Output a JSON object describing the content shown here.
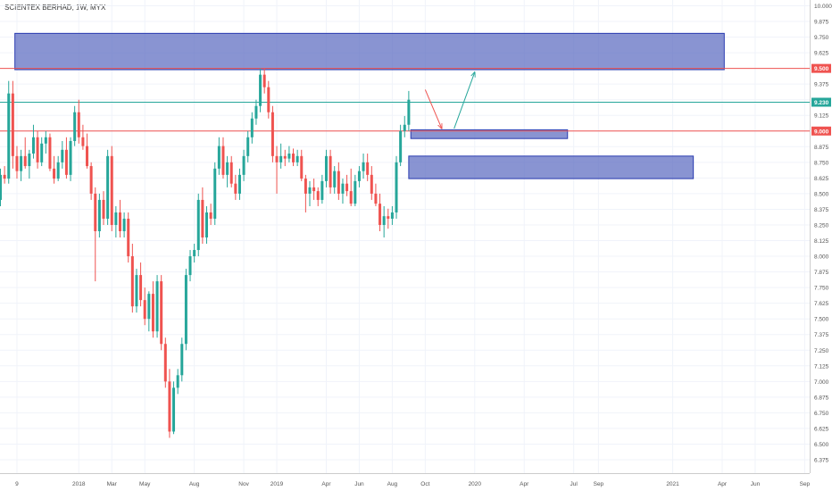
{
  "header": {
    "title": "SCIENTEX BERHAD, 1W, MYX"
  },
  "colors": {
    "up": "#26a69a",
    "down": "#ef5350",
    "zone_fill": "#5c6bc0",
    "zone_stroke": "#2a3bb0",
    "resistance_line": "#ef5350",
    "current_line": "#26a69a",
    "grid": "#f0f3fa",
    "axis_text": "#555555"
  },
  "chart_data": {
    "type": "candlestick",
    "title": "SCIENTEX BERHAD, 1W, MYX",
    "ylim": [
      6.3,
      10.05
    ],
    "y_ticks": [
      "10.000",
      "9.875",
      "9.750",
      "9.625",
      "9.500",
      "9.375",
      "9.250",
      "9.125",
      "9.000",
      "8.875",
      "8.750",
      "8.625",
      "8.500",
      "8.375",
      "8.250",
      "8.125",
      "8.000",
      "7.875",
      "7.750",
      "7.625",
      "7.500",
      "7.375",
      "7.250",
      "7.125",
      "7.000",
      "6.875",
      "6.750",
      "6.625",
      "6.500",
      "6.375"
    ],
    "x_ticks": [
      "9",
      "2018",
      "Mar",
      "May",
      "Aug",
      "Nov",
      "2019",
      "Apr",
      "Jun",
      "Aug",
      "Oct",
      "2020",
      "Apr",
      "Jul",
      "Sep",
      "2021",
      "Apr",
      "Jun",
      "Sep"
    ],
    "x_tick_weeks": [
      4,
      19,
      27,
      35,
      47,
      59,
      67,
      79,
      87,
      95,
      103,
      115,
      127,
      139,
      145,
      163,
      175,
      183,
      195
    ],
    "price_labels": [
      {
        "value": 9.5,
        "text": "9.500",
        "color": "#ef5350"
      },
      {
        "value": 9.23,
        "text": "9.230",
        "color": "#26a69a"
      },
      {
        "value": 9.0,
        "text": "9.000",
        "color": "#ef5350"
      }
    ],
    "horizontal_lines": [
      {
        "value": 9.5,
        "color": "#ef5350",
        "kind": "resistance"
      },
      {
        "value": 9.23,
        "color": "#26a69a",
        "kind": "last-price"
      },
      {
        "value": 9.0,
        "color": "#ef5350",
        "kind": "support"
      }
    ],
    "zones": [
      {
        "week_start": 3.5,
        "week_end": 175.5,
        "high": 9.78,
        "low": 9.49
      },
      {
        "week_start": 99.5,
        "week_end": 137.5,
        "high": 9.01,
        "low": 8.94
      },
      {
        "week_start": 99,
        "week_end": 168,
        "high": 8.8,
        "low": 8.62
      }
    ],
    "arrows": [
      {
        "color": "#ef5350",
        "from": [
          103,
          9.33
        ],
        "to": [
          107,
          9.02
        ]
      },
      {
        "color": "#26a69a",
        "from": [
          110,
          9.02
        ],
        "to": [
          115,
          9.47
        ]
      }
    ],
    "candles": [
      {
        "o": 8.45,
        "h": 8.7,
        "l": 8.4,
        "c": 8.65
      },
      {
        "o": 8.65,
        "h": 8.72,
        "l": 8.58,
        "c": 8.62
      },
      {
        "o": 8.62,
        "h": 9.4,
        "l": 8.58,
        "c": 9.3
      },
      {
        "o": 9.3,
        "h": 9.4,
        "l": 8.7,
        "c": 8.8
      },
      {
        "o": 8.8,
        "h": 8.88,
        "l": 8.62,
        "c": 8.68
      },
      {
        "o": 8.68,
        "h": 8.85,
        "l": 8.6,
        "c": 8.8
      },
      {
        "o": 8.8,
        "h": 8.95,
        "l": 8.7,
        "c": 8.72
      },
      {
        "o": 8.72,
        "h": 8.85,
        "l": 8.62,
        "c": 8.82
      },
      {
        "o": 8.82,
        "h": 9.05,
        "l": 8.78,
        "c": 8.95
      },
      {
        "o": 8.95,
        "h": 9.0,
        "l": 8.7,
        "c": 8.75
      },
      {
        "o": 8.75,
        "h": 8.95,
        "l": 8.72,
        "c": 8.9
      },
      {
        "o": 8.9,
        "h": 9.0,
        "l": 8.82,
        "c": 8.95
      },
      {
        "o": 8.95,
        "h": 8.98,
        "l": 8.68,
        "c": 8.7
      },
      {
        "o": 8.7,
        "h": 8.8,
        "l": 8.58,
        "c": 8.62
      },
      {
        "o": 8.62,
        "h": 8.8,
        "l": 8.6,
        "c": 8.75
      },
      {
        "o": 8.75,
        "h": 8.92,
        "l": 8.7,
        "c": 8.85
      },
      {
        "o": 8.85,
        "h": 8.95,
        "l": 8.62,
        "c": 8.65
      },
      {
        "o": 8.65,
        "h": 8.95,
        "l": 8.6,
        "c": 8.92
      },
      {
        "o": 8.92,
        "h": 9.2,
        "l": 8.88,
        "c": 9.15
      },
      {
        "o": 9.15,
        "h": 9.25,
        "l": 8.9,
        "c": 8.95
      },
      {
        "o": 8.95,
        "h": 9.05,
        "l": 8.85,
        "c": 8.88
      },
      {
        "o": 8.88,
        "h": 8.98,
        "l": 8.7,
        "c": 8.72
      },
      {
        "o": 8.72,
        "h": 8.75,
        "l": 8.45,
        "c": 8.5
      },
      {
        "o": 8.5,
        "h": 8.55,
        "l": 7.8,
        "c": 8.2
      },
      {
        "o": 8.2,
        "h": 8.5,
        "l": 8.15,
        "c": 8.45
      },
      {
        "o": 8.45,
        "h": 8.52,
        "l": 8.25,
        "c": 8.3
      },
      {
        "o": 8.3,
        "h": 8.85,
        "l": 8.25,
        "c": 8.8
      },
      {
        "o": 8.8,
        "h": 8.88,
        "l": 8.2,
        "c": 8.25
      },
      {
        "o": 8.25,
        "h": 8.4,
        "l": 8.15,
        "c": 8.35
      },
      {
        "o": 8.35,
        "h": 8.45,
        "l": 8.15,
        "c": 8.2
      },
      {
        "o": 8.2,
        "h": 8.35,
        "l": 8.15,
        "c": 8.3
      },
      {
        "o": 8.3,
        "h": 8.35,
        "l": 7.95,
        "c": 8.0
      },
      {
        "o": 8.0,
        "h": 8.1,
        "l": 7.55,
        "c": 7.6
      },
      {
        "o": 7.6,
        "h": 7.9,
        "l": 7.55,
        "c": 7.85
      },
      {
        "o": 7.85,
        "h": 7.95,
        "l": 7.6,
        "c": 7.65
      },
      {
        "o": 7.65,
        "h": 7.75,
        "l": 7.45,
        "c": 7.5
      },
      {
        "o": 7.5,
        "h": 7.72,
        "l": 7.4,
        "c": 7.7
      },
      {
        "o": 7.7,
        "h": 7.8,
        "l": 7.35,
        "c": 7.4
      },
      {
        "o": 7.4,
        "h": 7.85,
        "l": 7.35,
        "c": 7.8
      },
      {
        "o": 7.8,
        "h": 7.85,
        "l": 7.25,
        "c": 7.3
      },
      {
        "o": 7.3,
        "h": 7.35,
        "l": 6.95,
        "c": 7.0
      },
      {
        "o": 7.0,
        "h": 7.1,
        "l": 6.55,
        "c": 6.6
      },
      {
        "o": 6.6,
        "h": 7.0,
        "l": 6.58,
        "c": 6.95
      },
      {
        "o": 6.95,
        "h": 7.1,
        "l": 6.9,
        "c": 7.05
      },
      {
        "o": 7.05,
        "h": 7.35,
        "l": 7.0,
        "c": 7.3
      },
      {
        "o": 7.3,
        "h": 7.9,
        "l": 7.25,
        "c": 7.85
      },
      {
        "o": 7.85,
        "h": 8.05,
        "l": 7.8,
        "c": 8.0
      },
      {
        "o": 8.0,
        "h": 8.1,
        "l": 7.95,
        "c": 8.05
      },
      {
        "o": 8.05,
        "h": 8.5,
        "l": 8.0,
        "c": 8.45
      },
      {
        "o": 8.45,
        "h": 8.55,
        "l": 8.1,
        "c": 8.15
      },
      {
        "o": 8.15,
        "h": 8.4,
        "l": 8.1,
        "c": 8.35
      },
      {
        "o": 8.35,
        "h": 8.42,
        "l": 8.25,
        "c": 8.3
      },
      {
        "o": 8.3,
        "h": 8.75,
        "l": 8.25,
        "c": 8.7
      },
      {
        "o": 8.7,
        "h": 8.95,
        "l": 8.65,
        "c": 8.88
      },
      {
        "o": 8.88,
        "h": 8.95,
        "l": 8.62,
        "c": 8.65
      },
      {
        "o": 8.65,
        "h": 8.8,
        "l": 8.55,
        "c": 8.75
      },
      {
        "o": 8.75,
        "h": 8.8,
        "l": 8.55,
        "c": 8.58
      },
      {
        "o": 8.58,
        "h": 8.65,
        "l": 8.45,
        "c": 8.5
      },
      {
        "o": 8.5,
        "h": 8.7,
        "l": 8.45,
        "c": 8.65
      },
      {
        "o": 8.65,
        "h": 8.85,
        "l": 8.6,
        "c": 8.8
      },
      {
        "o": 8.8,
        "h": 9.0,
        "l": 8.75,
        "c": 8.95
      },
      {
        "o": 8.95,
        "h": 9.15,
        "l": 8.9,
        "c": 9.1
      },
      {
        "o": 9.1,
        "h": 9.25,
        "l": 9.05,
        "c": 9.2
      },
      {
        "o": 9.2,
        "h": 9.5,
        "l": 9.15,
        "c": 9.45
      },
      {
        "o": 9.45,
        "h": 9.5,
        "l": 9.3,
        "c": 9.35
      },
      {
        "o": 9.35,
        "h": 9.4,
        "l": 9.1,
        "c": 9.15
      },
      {
        "o": 9.15,
        "h": 9.2,
        "l": 8.75,
        "c": 8.8
      },
      {
        "o": 8.8,
        "h": 8.88,
        "l": 8.5,
        "c": 8.75
      },
      {
        "o": 8.75,
        "h": 8.9,
        "l": 8.7,
        "c": 8.8
      },
      {
        "o": 8.8,
        "h": 8.85,
        "l": 8.72,
        "c": 8.78
      },
      {
        "o": 8.78,
        "h": 8.88,
        "l": 8.75,
        "c": 8.82
      },
      {
        "o": 8.82,
        "h": 8.86,
        "l": 8.72,
        "c": 8.75
      },
      {
        "o": 8.75,
        "h": 8.85,
        "l": 8.72,
        "c": 8.8
      },
      {
        "o": 8.8,
        "h": 8.85,
        "l": 8.6,
        "c": 8.62
      },
      {
        "o": 8.62,
        "h": 8.65,
        "l": 8.35,
        "c": 8.5
      },
      {
        "o": 8.5,
        "h": 8.6,
        "l": 8.4,
        "c": 8.55
      },
      {
        "o": 8.55,
        "h": 8.62,
        "l": 8.45,
        "c": 8.52
      },
      {
        "o": 8.52,
        "h": 8.55,
        "l": 8.4,
        "c": 8.45
      },
      {
        "o": 8.45,
        "h": 8.65,
        "l": 8.42,
        "c": 8.6
      },
      {
        "o": 8.6,
        "h": 8.85,
        "l": 8.55,
        "c": 8.8
      },
      {
        "o": 8.8,
        "h": 8.85,
        "l": 8.5,
        "c": 8.55
      },
      {
        "o": 8.55,
        "h": 8.72,
        "l": 8.5,
        "c": 8.68
      },
      {
        "o": 8.68,
        "h": 8.75,
        "l": 8.45,
        "c": 8.5
      },
      {
        "o": 8.5,
        "h": 8.62,
        "l": 8.42,
        "c": 8.58
      },
      {
        "o": 8.58,
        "h": 8.65,
        "l": 8.48,
        "c": 8.52
      },
      {
        "o": 8.52,
        "h": 8.7,
        "l": 8.4,
        "c": 8.42
      },
      {
        "o": 8.42,
        "h": 8.65,
        "l": 8.4,
        "c": 8.6
      },
      {
        "o": 8.6,
        "h": 8.72,
        "l": 8.55,
        "c": 8.68
      },
      {
        "o": 8.68,
        "h": 8.82,
        "l": 8.62,
        "c": 8.75
      },
      {
        "o": 8.75,
        "h": 8.82,
        "l": 8.6,
        "c": 8.65
      },
      {
        "o": 8.65,
        "h": 8.72,
        "l": 8.45,
        "c": 8.5
      },
      {
        "o": 8.5,
        "h": 8.58,
        "l": 8.4,
        "c": 8.42
      },
      {
        "o": 8.42,
        "h": 8.5,
        "l": 8.2,
        "c": 8.25
      },
      {
        "o": 8.25,
        "h": 8.4,
        "l": 8.15,
        "c": 8.32
      },
      {
        "o": 8.32,
        "h": 8.38,
        "l": 8.22,
        "c": 8.3
      },
      {
        "o": 8.3,
        "h": 8.4,
        "l": 8.25,
        "c": 8.35
      },
      {
        "o": 8.35,
        "h": 8.8,
        "l": 8.3,
        "c": 8.75
      },
      {
        "o": 8.75,
        "h": 9.05,
        "l": 8.72,
        "c": 9.0
      },
      {
        "o": 9.0,
        "h": 9.12,
        "l": 8.95,
        "c": 9.05
      },
      {
        "o": 9.05,
        "h": 9.32,
        "l": 9.0,
        "c": 9.25
      }
    ]
  }
}
